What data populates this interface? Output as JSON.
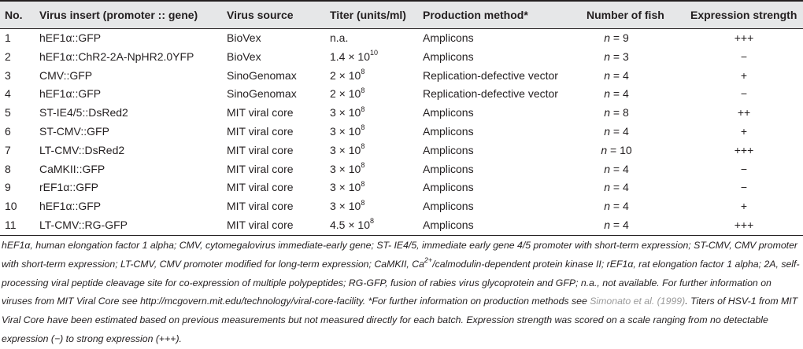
{
  "table": {
    "headers": {
      "no": "No.",
      "insert": "Virus insert (promoter :: gene)",
      "source": "Virus source",
      "titer": "Titer (units/ml)",
      "method": "Production method*",
      "fish": "Number of fish",
      "strength": "Expression strength"
    },
    "rows": [
      {
        "no": "1",
        "insert": "hEF1α::GFP",
        "source": "BioVex",
        "titer": "n.a.",
        "exp": "",
        "method": "Amplicons",
        "fish": "9",
        "strength": "+++"
      },
      {
        "no": "2",
        "insert": "hEF1α::ChR2-2A-NpHR2.0YFP",
        "source": "BioVex",
        "titer": "1.4 × 10",
        "exp": "10",
        "method": "Amplicons",
        "fish": "3",
        "strength": "−"
      },
      {
        "no": "3",
        "insert": "CMV::GFP",
        "source": "SinoGenomax",
        "titer": "2 × 10",
        "exp": "8",
        "method": "Replication-defective vector",
        "fish": "4",
        "strength": "+"
      },
      {
        "no": "4",
        "insert": "hEF1α::GFP",
        "source": "SinoGenomax",
        "titer": "2 × 10",
        "exp": "8",
        "method": "Replication-defective vector",
        "fish": "4",
        "strength": "−"
      },
      {
        "no": "5",
        "insert": "ST-IE4/5::DsRed2",
        "source": "MIT viral core",
        "titer": "3 × 10",
        "exp": "8",
        "method": "Amplicons",
        "fish": "8",
        "strength": "++"
      },
      {
        "no": "6",
        "insert": "ST-CMV::GFP",
        "source": "MIT viral core",
        "titer": "3 × 10",
        "exp": "8",
        "method": "Amplicons",
        "fish": "4",
        "strength": "+"
      },
      {
        "no": "7",
        "insert": "LT-CMV::DsRed2",
        "source": "MIT viral core",
        "titer": "3 × 10",
        "exp": "8",
        "method": "Amplicons",
        "fish": "10",
        "strength": "+++"
      },
      {
        "no": "8",
        "insert": "CaMKII::GFP",
        "source": "MIT viral core",
        "titer": "3 × 10",
        "exp": "8",
        "method": "Amplicons",
        "fish": "4",
        "strength": "−"
      },
      {
        "no": "9",
        "insert": "rEF1α::GFP",
        "source": "MIT viral core",
        "titer": "3 × 10",
        "exp": "8",
        "method": "Amplicons",
        "fish": "4",
        "strength": "−"
      },
      {
        "no": "10",
        "insert": "hEF1α::GFP",
        "source": "MIT viral core",
        "titer": "3 × 10",
        "exp": "8",
        "method": "Amplicons",
        "fish": "4",
        "strength": "+"
      },
      {
        "no": "11",
        "insert": "LT-CMV::RG-GFP",
        "source": "MIT viral core",
        "titer": "4.5 × 10",
        "exp": "8",
        "method": "Amplicons",
        "fish": "4",
        "strength": "+++"
      }
    ]
  },
  "footnote": {
    "part1": "hEF1α, human elongation factor 1 alpha; CMV, cytomegalovirus immediate-early gene; ST- IE4/5, immediate early gene 4/5 promoter with short-term expression; ST-CMV, CMV promoter with short-term expression; LT-CMV, CMV promoter modified for long-term expression; CaMKII, Ca",
    "ca_sup": "2+",
    "part2": "/calmodulin-dependent protein kinase II; rEF1α, rat elongation factor 1 alpha; 2A, self-processing viral peptide cleavage site for co-expression of multiple polypeptides; RG-GFP, fusion of rabies virus glycoprotein and GFP; n.a., not available. For further information on viruses from MIT Viral Core see http://mcgovern.mit.edu/technology/viral-core-facility. *For further information on production methods see ",
    "ref": "Simonato et al. (1999)",
    "part3": ". Titers of HSV-1 from MIT Viral Core have been estimated based on previous measurements but not measured directly for each batch. Expression strength was scored on a scale ranging from no detectable expression (−) to strong expression (+++)."
  }
}
